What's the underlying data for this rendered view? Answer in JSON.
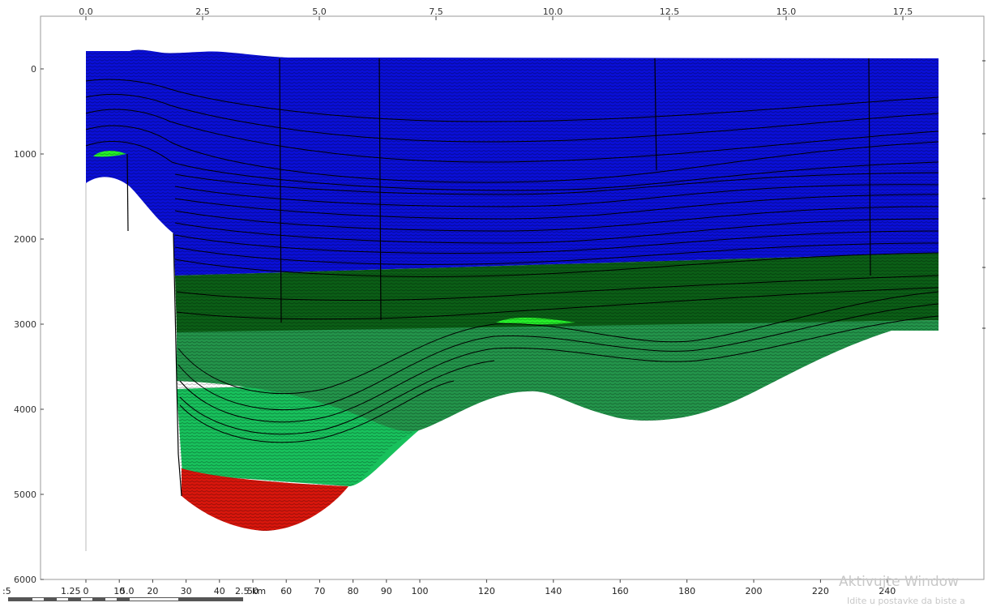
{
  "section": {
    "colors": {
      "frame": "#9a9a9a",
      "background": "#ffffff",
      "layer_blue": "#0a0fd6",
      "layer_dark_green": "#0b5e16",
      "layer_mid_green": "#23944a",
      "layer_light_green": "#18c15c",
      "layer_red": "#d8160c",
      "lens_bright_green": "#26f02a",
      "horizon_line": "#000000"
    },
    "top_axis": {
      "unit": "km",
      "range": [
        -0.6,
        19.5
      ],
      "ticks": [
        {
          "value": 0.0,
          "label": "0.0"
        },
        {
          "value": 2.5,
          "label": "2.5"
        },
        {
          "value": 5.0,
          "label": "5.0"
        },
        {
          "value": 7.5,
          "label": "7.5"
        },
        {
          "value": 10.0,
          "label": "10.0"
        },
        {
          "value": 12.5,
          "label": "12.5"
        },
        {
          "value": 15.0,
          "label": "15.0"
        },
        {
          "value": 17.5,
          "label": "17.5"
        }
      ]
    },
    "left_axis": {
      "inverted": true,
      "range": [
        -500,
        6000
      ],
      "ticks": [
        {
          "value": 0,
          "label": "0"
        },
        {
          "value": 1000,
          "label": "1000"
        },
        {
          "value": 2000,
          "label": "2000"
        },
        {
          "value": 3000,
          "label": "3000"
        },
        {
          "value": 4000,
          "label": "4000"
        },
        {
          "value": 5000,
          "label": "5000"
        },
        {
          "value": 6000,
          "label": "6000"
        }
      ]
    },
    "bottom_axis": {
      "range": [
        -5,
        258
      ],
      "ticks": [
        {
          "value": 0,
          "label": "0"
        },
        {
          "value": 10,
          "label": "10"
        },
        {
          "value": 20,
          "label": "20"
        },
        {
          "value": 30,
          "label": "30"
        },
        {
          "value": 40,
          "label": "40"
        },
        {
          "value": 50,
          "label": "50"
        },
        {
          "value": 60,
          "label": "60"
        },
        {
          "value": 70,
          "label": "70"
        },
        {
          "value": 80,
          "label": "80"
        },
        {
          "value": 90,
          "label": "90"
        },
        {
          "value": 100,
          "label": "100"
        },
        {
          "value": 120,
          "label": "120"
        },
        {
          "value": 140,
          "label": "140"
        },
        {
          "value": 160,
          "label": "160"
        },
        {
          "value": 180,
          "label": "180"
        },
        {
          "value": 200,
          "label": "200"
        },
        {
          "value": 220,
          "label": "220"
        },
        {
          "value": 240,
          "label": "240"
        }
      ]
    },
    "scalebar_labels": {
      "edge": ":5",
      "left": "1.25",
      "middle": "5.0",
      "right": "2.5 km"
    },
    "watermark": {
      "line1": "Aktivujte Window",
      "line2": "Idite u postavke da biste a"
    }
  }
}
